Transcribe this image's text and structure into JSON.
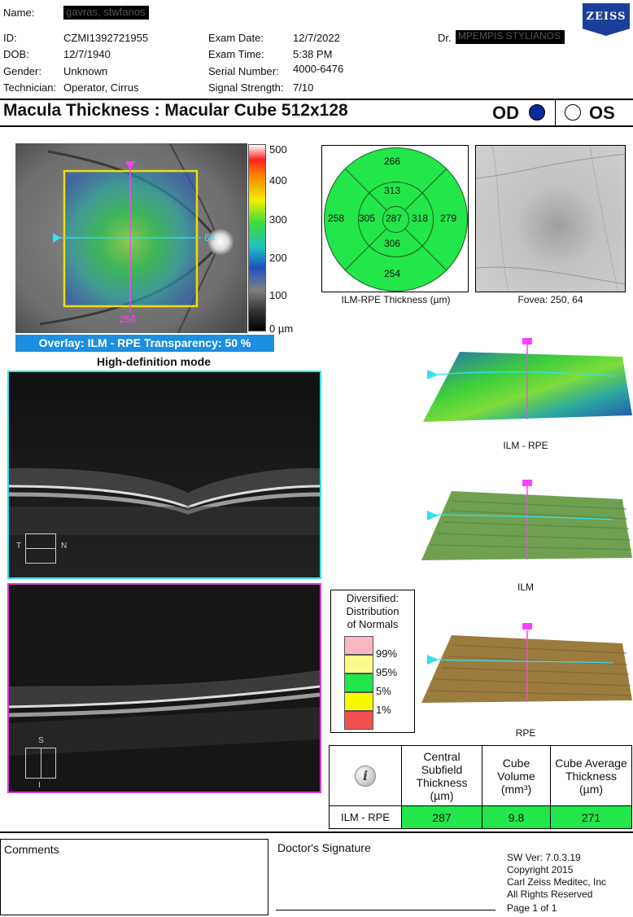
{
  "header": {
    "name_label": "Name:",
    "name_value": "gavras, stwfanos",
    "id_label": "ID:",
    "id_value": "CZMI1392721955",
    "dob_label": "DOB:",
    "dob_value": "12/7/1940",
    "gender_label": "Gender:",
    "gender_value": "Unknown",
    "technician_label": "Technician:",
    "technician_value": "Operator, Cirrus",
    "exam_date_label": "Exam Date:",
    "exam_date_value": "12/7/2022",
    "exam_time_label": "Exam Time:",
    "exam_time_value": "5:38 PM",
    "serial_label": "Serial Number:",
    "serial_value": "4000-6476",
    "signal_label": "Signal Strength:",
    "signal_value": "7/10",
    "doctor_label": "Dr.",
    "doctor_value": "MPEMPIS STYLIANOS",
    "logo": "ZEISS"
  },
  "title": "Macula Thickness : Macular Cube 512x128",
  "eye": {
    "od": "OD",
    "os": "OS",
    "selected": "OD",
    "selected_color": "#0a2a9a"
  },
  "fundus": {
    "scale_labels": [
      "500",
      "400",
      "300",
      "200",
      "100",
      "0 µm"
    ],
    "h_position": "64",
    "v_position": "256",
    "overlay_bar": "Overlay: ILM - RPE  Transparency: 50 %",
    "mode": "High-definition mode"
  },
  "etdrs": {
    "superior_outer": "266",
    "superior_inner": "313",
    "temporal_outer": "258",
    "temporal_inner": "305",
    "center": "287",
    "nasal_inner": "318",
    "nasal_outer": "279",
    "inferior_inner": "306",
    "inferior_outer": "254",
    "caption": "ILM-RPE Thickness (µm)",
    "fill_color": "#22e64a"
  },
  "fovea_caption": "Fovea: 250, 64",
  "bscan": {
    "h_t": "T",
    "h_n": "N",
    "v_s": "S",
    "v_i": "I"
  },
  "surfaces": [
    "ILM - RPE",
    "ILM",
    "RPE"
  ],
  "normals": {
    "title_lines": [
      "Diversified:",
      "Distribution",
      "of Normals"
    ],
    "percentiles": [
      "99%",
      "95%",
      "5%",
      "1%"
    ],
    "colors": [
      "#f9b6c3",
      "#fafa8a",
      "#22e64a",
      "#f8f800",
      "#f25050"
    ]
  },
  "summary": {
    "icon": "info-icon",
    "headers": [
      "Central Subfield Thickness (µm)",
      "Cube Volume (mm³)",
      "Cube Average Thickness (µm)"
    ],
    "row_label": "ILM - RPE",
    "values": [
      "287",
      "9.8",
      "271"
    ]
  },
  "footer": {
    "comments": "Comments",
    "signature": "Doctor's Signature",
    "sw_lines": [
      "SW Ver: 7.0.3.19",
      "Copyright 2015",
      "Carl Zeiss Meditec, Inc",
      "All Rights Reserved"
    ],
    "page": "Page 1 of 1"
  }
}
